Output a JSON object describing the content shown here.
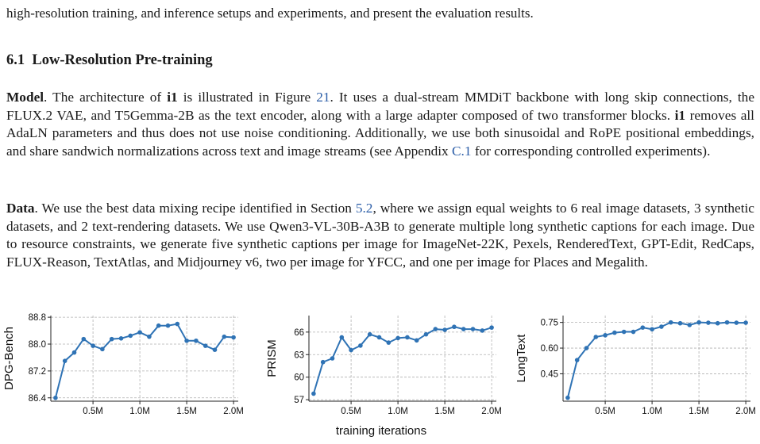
{
  "intro_line": "high-resolution training, and inference setups and experiments, and present the evaluation results.",
  "section": {
    "number": "6.1",
    "title": "Low-Resolution Pre-training"
  },
  "model_para": {
    "lead": "Model",
    "t1": ". The architecture of ",
    "b1": "i1",
    "t2": " is illustrated in Figure ",
    "ref1": "21",
    "t3": ". It uses a dual-stream MMDiT backbone with long skip connections, the FLUX.2 VAE, and T5Gemma-2B as the text encoder, along with a large adapter composed of two transformer blocks. ",
    "b2": "i1",
    "t4": " removes all AdaLN parameters and thus does not use noise conditioning. Additionally, we use both sinusoidal and RoPE positional embeddings, and share sandwich normalizations across text and image streams (see Appendix ",
    "ref2": "C.1",
    "t5": " for corresponding controlled experiments)."
  },
  "data_para": {
    "lead": "Data",
    "t1": ". We use the best data mixing recipe identified in Section ",
    "ref1": "5.2",
    "t2": ", where we assign equal weights to 6 real image datasets, 3 synthetic datasets, and 2 text-rendering datasets. We use Qwen3-VL-30B-A3B to generate multiple long synthetic captions for each image. Due to resource constraints, we generate five synthetic captions per image for ImageNet-22K, Pexels, RenderedText, GPT-Edit, RedCaps, FLUX-Reason, TextAtlas, and Midjourney v6, two per image for YFCC, and one per image for Places and Megalith."
  },
  "shared_xlabel": "training iterations",
  "colors": {
    "line": "#2f73b5",
    "grid": "#b0b0b0",
    "axis": "#222222"
  },
  "chart_data": [
    {
      "type": "line",
      "ylabel": "DPG-Bench",
      "xlabel": "",
      "xlim": [
        0.05,
        2.05
      ],
      "ylim": [
        86.3,
        88.85
      ],
      "yticks": [
        86.4,
        87.2,
        88.0,
        88.8
      ],
      "ytick_labels": [
        "86.4",
        "87.2",
        "88.0",
        "88.8"
      ],
      "xticks": [
        0.5,
        1.0,
        1.5,
        2.0
      ],
      "xtick_labels": [
        "0.5M",
        "1.0M",
        "1.5M",
        "2.0M"
      ],
      "x": [
        0.1,
        0.2,
        0.3,
        0.4,
        0.5,
        0.6,
        0.7,
        0.8,
        0.9,
        1.0,
        1.1,
        1.2,
        1.3,
        1.4,
        1.5,
        1.6,
        1.7,
        1.8,
        1.9,
        2.0
      ],
      "series": [
        {
          "values": [
            86.4,
            87.5,
            87.75,
            88.15,
            87.95,
            87.85,
            88.15,
            88.17,
            88.25,
            88.35,
            88.22,
            88.55,
            88.55,
            88.6,
            88.1,
            88.1,
            87.95,
            87.83,
            88.22,
            88.2
          ]
        }
      ]
    },
    {
      "type": "line",
      "ylabel": "PRISM",
      "xlabel": "",
      "xlim": [
        0.05,
        2.05
      ],
      "ylim": [
        56.8,
        68.2
      ],
      "yticks": [
        57,
        60,
        63,
        66
      ],
      "ytick_labels": [
        "57",
        "60",
        "63",
        "66"
      ],
      "xticks": [
        0.5,
        1.0,
        1.5,
        2.0
      ],
      "xtick_labels": [
        "0.5M",
        "1.0M",
        "1.5M",
        "2.0M"
      ],
      "x": [
        0.1,
        0.2,
        0.3,
        0.4,
        0.5,
        0.6,
        0.7,
        0.8,
        0.9,
        1.0,
        1.1,
        1.2,
        1.3,
        1.4,
        1.5,
        1.6,
        1.7,
        1.8,
        1.9,
        2.0
      ],
      "series": [
        {
          "values": [
            57.8,
            62.0,
            62.5,
            65.3,
            63.6,
            64.2,
            65.7,
            65.3,
            64.6,
            65.2,
            65.3,
            64.9,
            65.7,
            66.4,
            66.3,
            66.7,
            66.4,
            66.4,
            66.2,
            66.6
          ]
        }
      ]
    },
    {
      "type": "line",
      "ylabel": "LongText",
      "xlabel": "",
      "xlim": [
        0.05,
        2.05
      ],
      "ylim": [
        0.29,
        0.79
      ],
      "yticks": [
        0.45,
        0.6,
        0.75
      ],
      "ytick_labels": [
        "0.45",
        "0.60",
        "0.75"
      ],
      "xticks": [
        0.5,
        1.0,
        1.5,
        2.0
      ],
      "xtick_labels": [
        "0.5M",
        "1.0M",
        "1.5M",
        "2.0M"
      ],
      "x": [
        0.1,
        0.2,
        0.3,
        0.4,
        0.5,
        0.6,
        0.7,
        0.8,
        0.9,
        1.0,
        1.1,
        1.2,
        1.3,
        1.4,
        1.5,
        1.6,
        1.7,
        1.8,
        1.9,
        2.0
      ],
      "series": [
        {
          "values": [
            0.31,
            0.53,
            0.6,
            0.665,
            0.675,
            0.69,
            0.695,
            0.695,
            0.72,
            0.71,
            0.725,
            0.75,
            0.745,
            0.735,
            0.75,
            0.748,
            0.745,
            0.75,
            0.748,
            0.748
          ]
        }
      ]
    }
  ]
}
